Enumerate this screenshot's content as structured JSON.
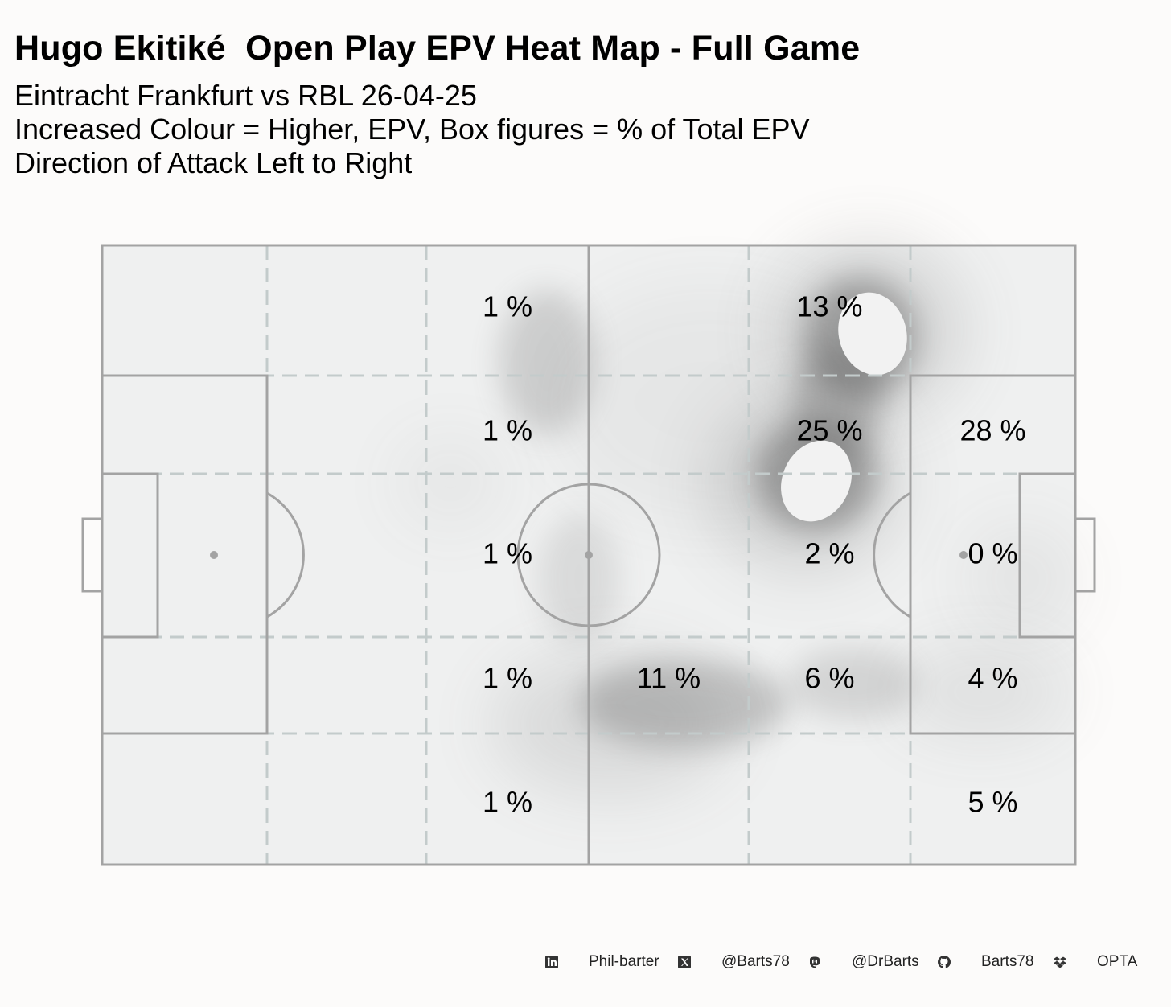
{
  "title": "Hugo Ekitiké  Open Play EPV Heat Map - Full Game",
  "subtitle_lines": [
    "Eintracht Frankfurt vs RBL 26-04-25",
    "Increased Colour = Higher, EPV, Box figures = % of Total EPV",
    "Direction of Attack Left to Right"
  ],
  "chart_data": {
    "type": "heatmap",
    "description_of_grid": "pitch zones, columns 1-6 left to right, rows 1-5 top to bottom",
    "zones": [
      {
        "col": 3,
        "row": 1,
        "label": "1 %",
        "value": 1
      },
      {
        "col": 5,
        "row": 1,
        "label": "13 %",
        "value": 13
      },
      {
        "col": 3,
        "row": 2,
        "label": "1 %",
        "value": 1
      },
      {
        "col": 5,
        "row": 2,
        "label": "25 %",
        "value": 25
      },
      {
        "col": 6,
        "row": 2,
        "label": "28 %",
        "value": 28
      },
      {
        "col": 3,
        "row": 3,
        "label": "1 %",
        "value": 1
      },
      {
        "col": 5,
        "row": 3,
        "label": "2 %",
        "value": 2
      },
      {
        "col": 6,
        "row": 3,
        "label": "0 %",
        "value": 0
      },
      {
        "col": 3,
        "row": 4,
        "label": "1 %",
        "value": 1
      },
      {
        "col": 4,
        "row": 4,
        "label": "11 %",
        "value": 11
      },
      {
        "col": 5,
        "row": 4,
        "label": "6 %",
        "value": 6
      },
      {
        "col": 6,
        "row": 4,
        "label": "4 %",
        "value": 4
      },
      {
        "col": 3,
        "row": 5,
        "label": "1 %",
        "value": 1
      },
      {
        "col": 6,
        "row": 5,
        "label": "5 %",
        "value": 5
      }
    ],
    "direction_of_attack": "left to right",
    "colors": {
      "pitch": "#eff0f0",
      "lines": "#a3a3a3",
      "zone_lines": "#c3cbcb",
      "density": "#5a5a5a"
    }
  },
  "footer": [
    {
      "icon": "linkedin-icon",
      "label": "Phil-barter"
    },
    {
      "icon": "x-icon",
      "label": "@Barts78"
    },
    {
      "icon": "mastodon-icon",
      "label": "@DrBarts"
    },
    {
      "icon": "github-icon",
      "label": "Barts78"
    },
    {
      "icon": "dropbox-icon",
      "label": "OPTA"
    }
  ]
}
